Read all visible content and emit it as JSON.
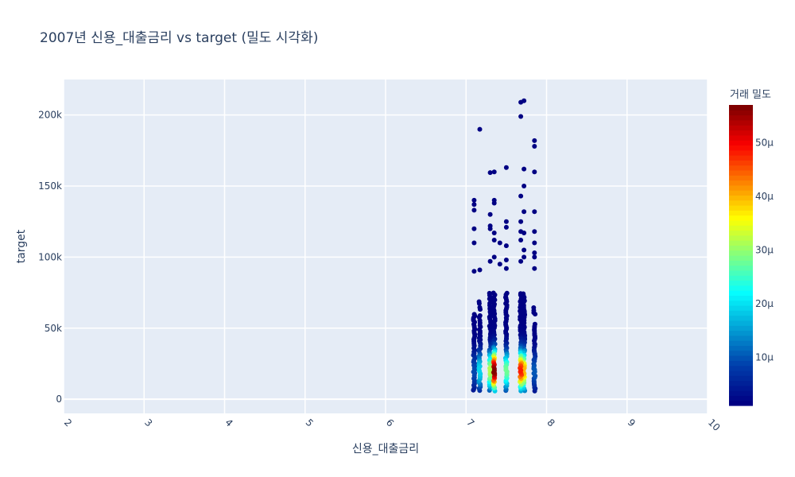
{
  "chart_data": {
    "type": "scatter",
    "title": "2007년 신용_대출금리 vs target (밀도 시각화)",
    "xlabel": "신용_대출금리",
    "ylabel": "target",
    "xlim": [
      2,
      10
    ],
    "ylim": [
      -10000,
      225000
    ],
    "xticks": [
      2,
      3,
      4,
      5,
      6,
      7,
      8,
      9,
      10
    ],
    "yticks": [
      {
        "value": 0,
        "label": "0"
      },
      {
        "value": 50000,
        "label": "50k"
      },
      {
        "value": 100000,
        "label": "100k"
      },
      {
        "value": 150000,
        "label": "150k"
      },
      {
        "value": 200000,
        "label": "200k"
      }
    ],
    "grid": true,
    "colorbar": {
      "title": "거래 밀도",
      "min": 1e-06,
      "max": 5.7e-05,
      "ticks": [
        {
          "value": 1e-05,
          "label": "10μ"
        },
        {
          "value": 2e-05,
          "label": "20μ"
        },
        {
          "value": 3e-05,
          "label": "30μ"
        },
        {
          "value": 4e-05,
          "label": "40μ"
        },
        {
          "value": 5e-05,
          "label": "50μ"
        }
      ],
      "colorscale": "jet"
    },
    "series": [
      {
        "x_values": [
          7.1,
          7.17,
          7.3,
          7.35,
          7.5,
          7.68,
          7.72,
          7.85
        ],
        "outliers": [
          [
            7.17,
            190000
          ],
          [
            7.68,
            209000
          ],
          [
            7.72,
            210000
          ],
          [
            7.68,
            199000
          ],
          [
            7.85,
            182000
          ],
          [
            7.85,
            178000
          ],
          [
            7.5,
            163000
          ],
          [
            7.72,
            162000
          ],
          [
            7.35,
            160000
          ],
          [
            7.3,
            159500
          ],
          [
            7.85,
            160000
          ],
          [
            7.72,
            150000
          ],
          [
            7.68,
            143000
          ],
          [
            7.1,
            140000
          ],
          [
            7.1,
            137000
          ],
          [
            7.35,
            140000
          ],
          [
            7.35,
            138000
          ],
          [
            7.1,
            133000
          ],
          [
            7.3,
            130000
          ],
          [
            7.72,
            132000
          ],
          [
            7.85,
            132000
          ],
          [
            7.68,
            125000
          ],
          [
            7.5,
            125000
          ],
          [
            7.5,
            121000
          ],
          [
            7.3,
            122000
          ],
          [
            7.3,
            120000
          ],
          [
            7.1,
            120000
          ],
          [
            7.35,
            117000
          ],
          [
            7.68,
            118000
          ],
          [
            7.72,
            117000
          ],
          [
            7.85,
            118000
          ],
          [
            7.35,
            112000
          ],
          [
            7.1,
            110000
          ],
          [
            7.42,
            110000
          ],
          [
            7.5,
            108000
          ],
          [
            7.85,
            110000
          ],
          [
            7.68,
            112000
          ],
          [
            7.72,
            105000
          ],
          [
            7.85,
            103000
          ],
          [
            7.85,
            100000
          ],
          [
            7.35,
            100000
          ],
          [
            7.5,
            98000
          ],
          [
            7.3,
            97000
          ],
          [
            7.72,
            100000
          ],
          [
            7.42,
            95000
          ],
          [
            7.68,
            97000
          ],
          [
            7.17,
            91000
          ],
          [
            7.1,
            90000
          ],
          [
            7.5,
            92000
          ],
          [
            7.85,
            92000
          ]
        ],
        "density_range": [
          1e-06,
          5.7e-05
        ]
      }
    ]
  }
}
